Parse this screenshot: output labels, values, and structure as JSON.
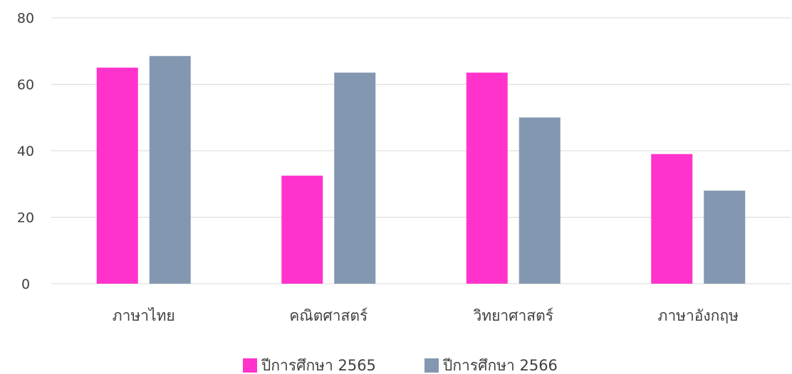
{
  "chart_data": {
    "type": "bar",
    "categories": [
      "ภาษาไทย",
      "คณิตศาสตร์",
      "วิทยาศาสตร์",
      "ภาษาอังกฤษ"
    ],
    "series": [
      {
        "name": "ปีการศึกษา 2565",
        "color": "#ff33cc",
        "values": [
          65,
          32.5,
          63.5,
          39
        ]
      },
      {
        "name": "ปีการศึกษา 2566",
        "color": "#8497b0",
        "values": [
          68.5,
          63.5,
          50,
          28
        ]
      }
    ],
    "y_ticks": [
      "0",
      "20",
      "40",
      "60",
      "80"
    ],
    "ylim": [
      0,
      80
    ],
    "grid": true,
    "legend_position": "bottom",
    "title": "",
    "xlabel": "",
    "ylabel": ""
  }
}
